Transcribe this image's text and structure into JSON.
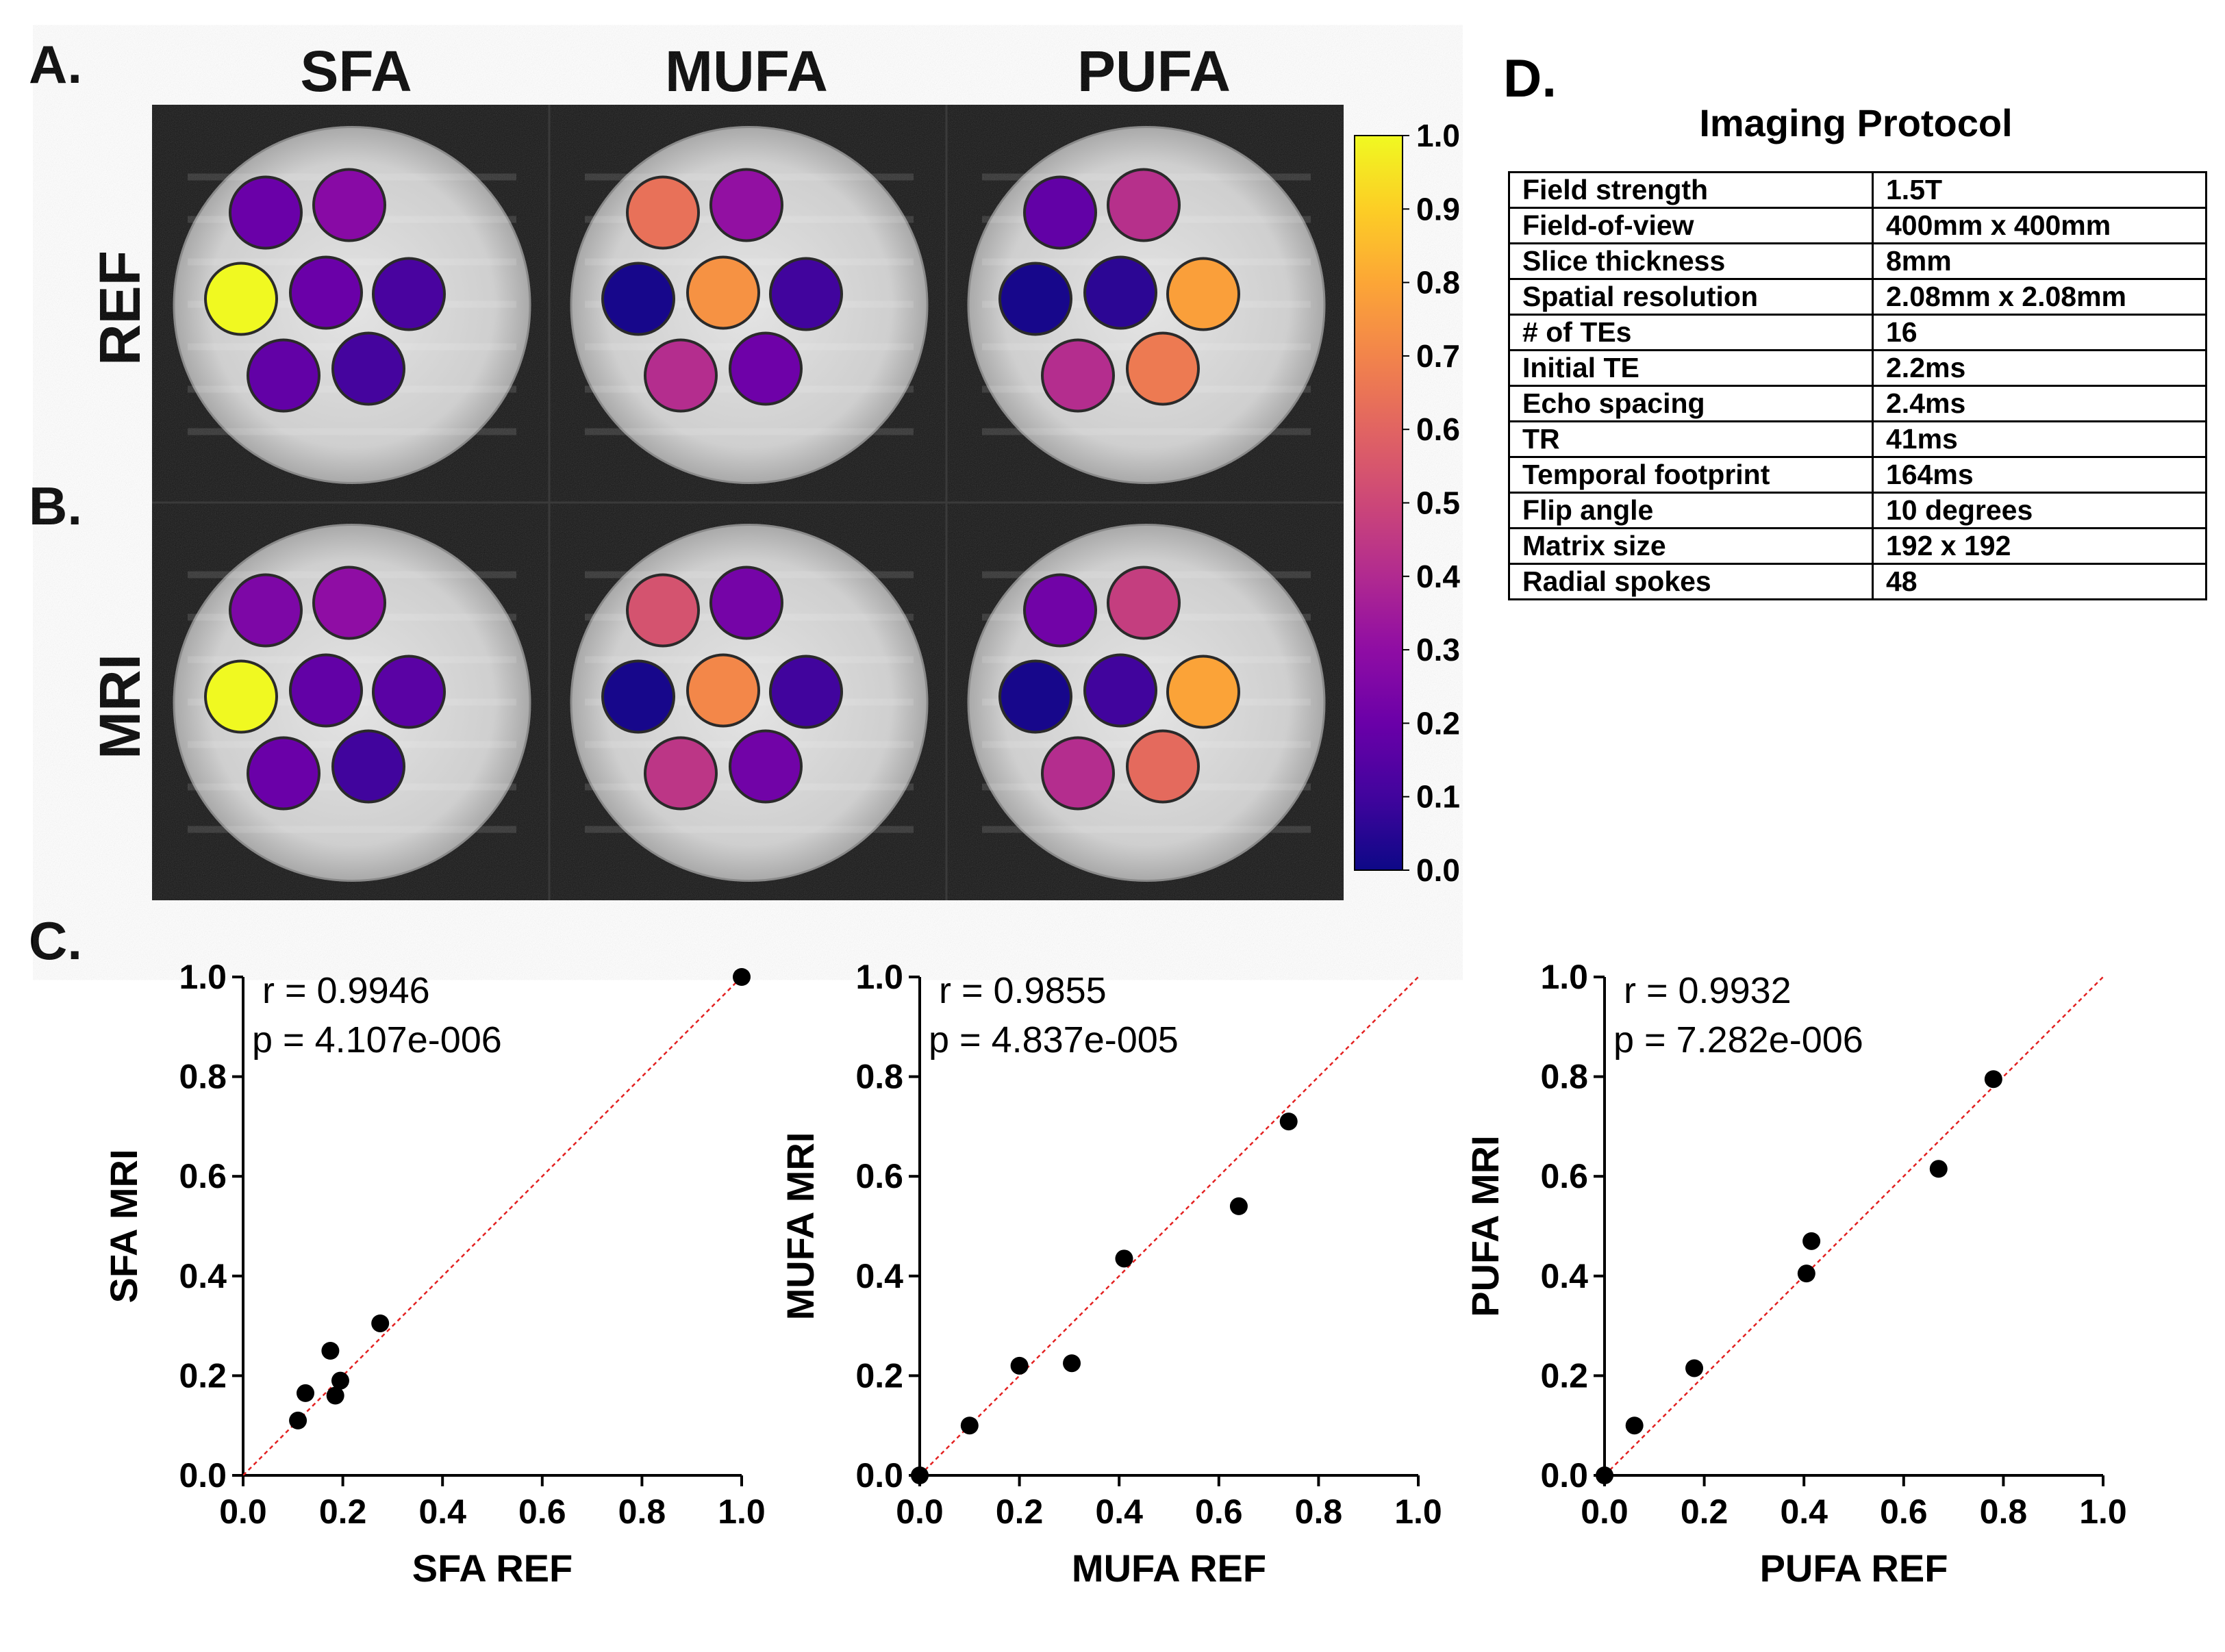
{
  "panels": {
    "a": "A.",
    "b": "B.",
    "c": "C.",
    "d": "D."
  },
  "columns": [
    "SFA",
    "MUFA",
    "PUFA"
  ],
  "rows": [
    "REF",
    "MRI"
  ],
  "colorbar": {
    "ticks": [
      "1.0",
      "0.9",
      "0.8",
      "0.7",
      "0.6",
      "0.5",
      "0.4",
      "0.3",
      "0.2",
      "0.1",
      "0.0"
    ],
    "colormap": "plasma",
    "range": [
      0,
      1
    ]
  },
  "phantom_values": {
    "REF": {
      "SFA": [
        0.2,
        0.28,
        1.0,
        0.2,
        0.12,
        0.18,
        0.11
      ],
      "MUFA": [
        0.64,
        0.31,
        0.02,
        0.74,
        0.1,
        0.41,
        0.21
      ],
      "PUFA": [
        0.18,
        0.42,
        0.02,
        0.06,
        0.78,
        0.41,
        0.67
      ]
    },
    "MRI": {
      "SFA": [
        0.25,
        0.3,
        1.0,
        0.18,
        0.16,
        0.2,
        0.1
      ],
      "MUFA": [
        0.54,
        0.23,
        0.02,
        0.71,
        0.1,
        0.44,
        0.22
      ],
      "PUFA": [
        0.22,
        0.47,
        0.02,
        0.1,
        0.79,
        0.41,
        0.62
      ]
    }
  },
  "table": {
    "title": "Imaging Protocol",
    "rows": [
      [
        "Field strength",
        "1.5T"
      ],
      [
        "Field-of-view",
        "400mm x 400mm"
      ],
      [
        "Slice thickness",
        "8mm"
      ],
      [
        "Spatial resolution",
        "2.08mm x 2.08mm"
      ],
      [
        "# of TEs",
        "16"
      ],
      [
        "Initial TE",
        "2.2ms"
      ],
      [
        "Echo spacing",
        "2.4ms"
      ],
      [
        "TR",
        "41ms"
      ],
      [
        "Temporal footprint",
        "164ms"
      ],
      [
        "Flip angle",
        "10 degrees"
      ],
      [
        "Matrix size",
        "192 x 192"
      ],
      [
        "Radial spokes",
        "48"
      ]
    ]
  },
  "chart_data": [
    {
      "type": "scatter",
      "xlabel": "SFA REF",
      "ylabel": "SFA MRI",
      "xlim": [
        0,
        1
      ],
      "ylim": [
        0,
        1
      ],
      "xticks": [
        "0.0",
        "0.2",
        "0.4",
        "0.6",
        "0.8",
        "1.0"
      ],
      "yticks": [
        "0.0",
        "0.2",
        "0.4",
        "0.6",
        "0.8",
        "1.0"
      ],
      "annotations": [
        "r = 0.9946",
        "p = 4.107e-006"
      ],
      "identity_line": true,
      "points": [
        [
          0.11,
          0.11
        ],
        [
          0.125,
          0.165
        ],
        [
          0.175,
          0.25
        ],
        [
          0.185,
          0.16
        ],
        [
          0.195,
          0.19
        ],
        [
          0.275,
          0.305
        ],
        [
          1.0,
          1.0
        ]
      ]
    },
    {
      "type": "scatter",
      "xlabel": "MUFA REF",
      "ylabel": "MUFA MRI",
      "xlim": [
        0,
        1
      ],
      "ylim": [
        0,
        1
      ],
      "xticks": [
        "0.0",
        "0.2",
        "0.4",
        "0.6",
        "0.8",
        "1.0"
      ],
      "yticks": [
        "0.0",
        "0.2",
        "0.4",
        "0.6",
        "0.8",
        "1.0"
      ],
      "annotations": [
        "r = 0.9855",
        "p = 4.837e-005"
      ],
      "identity_line": true,
      "points": [
        [
          0.0,
          0.0
        ],
        [
          0.1,
          0.1
        ],
        [
          0.2,
          0.22
        ],
        [
          0.305,
          0.225
        ],
        [
          0.41,
          0.435
        ],
        [
          0.64,
          0.54
        ],
        [
          0.74,
          0.71
        ]
      ]
    },
    {
      "type": "scatter",
      "xlabel": "PUFA REF",
      "ylabel": "PUFA MRI",
      "xlim": [
        0,
        1
      ],
      "ylim": [
        0,
        1
      ],
      "xticks": [
        "0.0",
        "0.2",
        "0.4",
        "0.6",
        "0.8",
        "1.0"
      ],
      "yticks": [
        "0.0",
        "0.2",
        "0.4",
        "0.6",
        "0.8",
        "1.0"
      ],
      "annotations": [
        "r = 0.9932",
        "p = 7.282e-006"
      ],
      "identity_line": true,
      "points": [
        [
          0.0,
          0.0
        ],
        [
          0.06,
          0.1
        ],
        [
          0.18,
          0.215
        ],
        [
          0.405,
          0.405
        ],
        [
          0.415,
          0.47
        ],
        [
          0.67,
          0.615
        ],
        [
          0.78,
          0.795
        ]
      ]
    }
  ]
}
